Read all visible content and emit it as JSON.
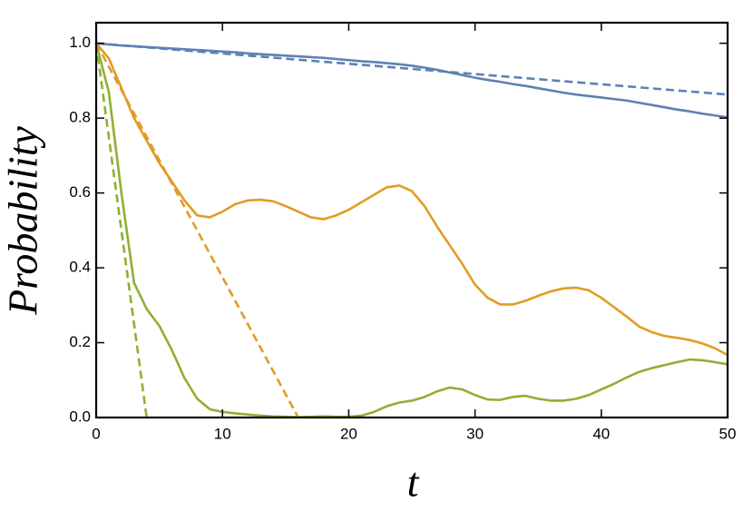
{
  "chart_data": {
    "type": "line",
    "xlabel": "t",
    "ylabel": "Probability",
    "xlim": [
      0,
      50
    ],
    "ylim": [
      0,
      1.055
    ],
    "xticks": [
      0,
      10,
      20,
      30,
      40,
      50
    ],
    "yticks": [
      {
        "value": 0,
        "label": "0.0"
      },
      0.2,
      0.4,
      0.6,
      0.8,
      {
        "value": 1,
        "label": "1.0"
      }
    ],
    "grid": false,
    "x": [
      0,
      1,
      2,
      3,
      4,
      5,
      6,
      7,
      8,
      9,
      10,
      11,
      12,
      13,
      14,
      15,
      16,
      17,
      18,
      19,
      20,
      21,
      22,
      23,
      24,
      25,
      26,
      27,
      28,
      29,
      30,
      31,
      32,
      33,
      34,
      35,
      36,
      37,
      38,
      39,
      40,
      41,
      42,
      43,
      44,
      45,
      46,
      47,
      48,
      49,
      50
    ],
    "series": [
      {
        "color": "#5e81b5",
        "dash": false,
        "values": [
          1.0,
          0.997,
          0.994,
          0.992,
          0.99,
          0.988,
          0.986,
          0.984,
          0.982,
          0.98,
          0.978,
          0.976,
          0.973,
          0.971,
          0.969,
          0.967,
          0.965,
          0.963,
          0.961,
          0.958,
          0.955,
          0.952,
          0.95,
          0.947,
          0.944,
          0.94,
          0.935,
          0.929,
          0.922,
          0.915,
          0.908,
          0.902,
          0.897,
          0.891,
          0.886,
          0.88,
          0.874,
          0.868,
          0.863,
          0.859,
          0.855,
          0.851,
          0.847,
          0.841,
          0.835,
          0.829,
          0.823,
          0.818,
          0.812,
          0.807,
          0.802
        ]
      },
      {
        "color": "#e19c24",
        "dash": false,
        "values": [
          1.0,
          0.96,
          0.88,
          0.8,
          0.74,
          0.68,
          0.63,
          0.58,
          0.54,
          0.535,
          0.55,
          0.57,
          0.58,
          0.582,
          0.578,
          0.565,
          0.55,
          0.535,
          0.53,
          0.54,
          0.555,
          0.575,
          0.595,
          0.615,
          0.62,
          0.605,
          0.565,
          0.51,
          0.46,
          0.41,
          0.355,
          0.32,
          0.302,
          0.302,
          0.312,
          0.325,
          0.337,
          0.345,
          0.347,
          0.34,
          0.32,
          0.295,
          0.27,
          0.243,
          0.228,
          0.218,
          0.213,
          0.207,
          0.198,
          0.185,
          0.167
        ]
      },
      {
        "color": "#8fb032",
        "dash": false,
        "values": [
          1.0,
          0.87,
          0.6,
          0.36,
          0.29,
          0.245,
          0.18,
          0.105,
          0.05,
          0.022,
          0.015,
          0.011,
          0.008,
          0.005,
          0.003,
          0.002,
          0.001,
          0.002,
          0.003,
          0.002,
          0.002,
          0.005,
          0.015,
          0.03,
          0.04,
          0.045,
          0.055,
          0.07,
          0.08,
          0.075,
          0.06,
          0.048,
          0.047,
          0.055,
          0.058,
          0.05,
          0.045,
          0.045,
          0.05,
          0.06,
          0.075,
          0.09,
          0.107,
          0.122,
          0.132,
          0.14,
          0.148,
          0.155,
          0.153,
          0.148,
          0.142
        ]
      },
      {
        "color": "#5e81b5",
        "dash": true,
        "x": [
          0,
          50
        ],
        "values": [
          1.0,
          0.863
        ]
      },
      {
        "color": "#e19c24",
        "dash": true,
        "x": [
          0,
          16
        ],
        "values": [
          1.0,
          0
        ]
      },
      {
        "color": "#8fb032",
        "dash": true,
        "x": [
          0,
          4
        ],
        "values": [
          1.0,
          0
        ]
      }
    ]
  }
}
